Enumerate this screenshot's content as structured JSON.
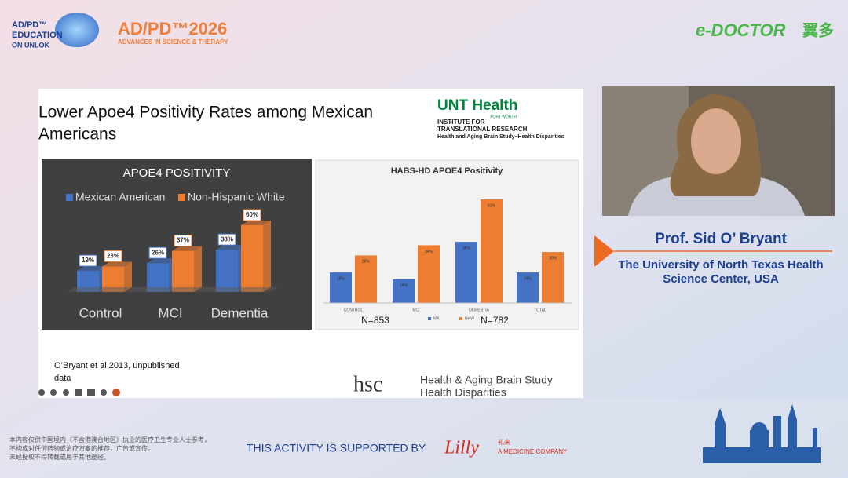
{
  "header": {
    "event_logo": [
      "AD/PD™",
      "EDUCATION",
      "ON UNLOK"
    ],
    "conference": "AD/PD™2026",
    "conference_tagline": "ADVANCES IN SCIENCE & THERAPY",
    "partner": "e-DOCTOR",
    "partner_cn": "翼多"
  },
  "slide": {
    "title": [
      "Lower Apoe4 Positivity Rates among Mexican",
      "Americans"
    ],
    "institution": [
      "UNT Health",
      "FORT WORTH",
      "INSTITUTE FOR",
      "TRANSLATIONAL RESEARCH",
      "Health and Aging Brain Study–Health Disparities"
    ],
    "citation": [
      "O’Bryant et al 2013, unpublished",
      "data"
    ],
    "study_logo": "hsc",
    "study_name": [
      "Health & Aging Brain Study",
      "Health Disparities"
    ]
  },
  "chart_data": [
    {
      "type": "bar",
      "title": "APOE4 POSITIVITY",
      "categories": [
        "Control",
        "MCI",
        "Dementia"
      ],
      "series": [
        {
          "name": "Mexican American",
          "color": "#4472c4",
          "values": [
            19,
            26,
            38
          ],
          "value_labels": [
            "19%",
            "26%",
            "38%"
          ]
        },
        {
          "name": "Non-Hispanic White",
          "color": "#ed7d31",
          "values": [
            23,
            37,
            60
          ],
          "value_labels": [
            "23%",
            "37%",
            "60%"
          ]
        }
      ]
    },
    {
      "type": "bar",
      "title": "HABS-HD APOE4 Positivity",
      "categories": [
        "CONTROL",
        "MCI",
        "DEMENTIA",
        "TOTAL"
      ],
      "series": [
        {
          "name": "MA",
          "color": "#4472c4",
          "values": [
            18,
            14,
            36,
            18
          ],
          "value_labels": [
            "18%",
            "14%",
            "36%",
            "18%"
          ]
        },
        {
          "name": "NHW",
          "color": "#ed7d31",
          "values": [
            28,
            34,
            61,
            30
          ],
          "value_labels": [
            "28%",
            "34%",
            "61%",
            "30%"
          ]
        }
      ],
      "annotations": [
        "N=853",
        "N=782"
      ]
    }
  ],
  "speaker": {
    "name": "Prof. Sid O’ Bryant",
    "affiliation": [
      "The University of North Texas Health",
      "Science Center, USA"
    ]
  },
  "footer": {
    "disclaimer": [
      "本内容仅供中国境内（不含港澳台地区）执业的医疗卫生专业人士参考，",
      "不构成对任何药物或治疗方案的推荐，广告或宣传。",
      "未经授权不得转载或用于其他途径。"
    ],
    "support": "THIS ACTIVITY IS SUPPORTED BY",
    "sponsor": "Lilly",
    "sponsor_cn": "礼来",
    "sponsor_tagline": "A MEDICINE COMPANY"
  }
}
